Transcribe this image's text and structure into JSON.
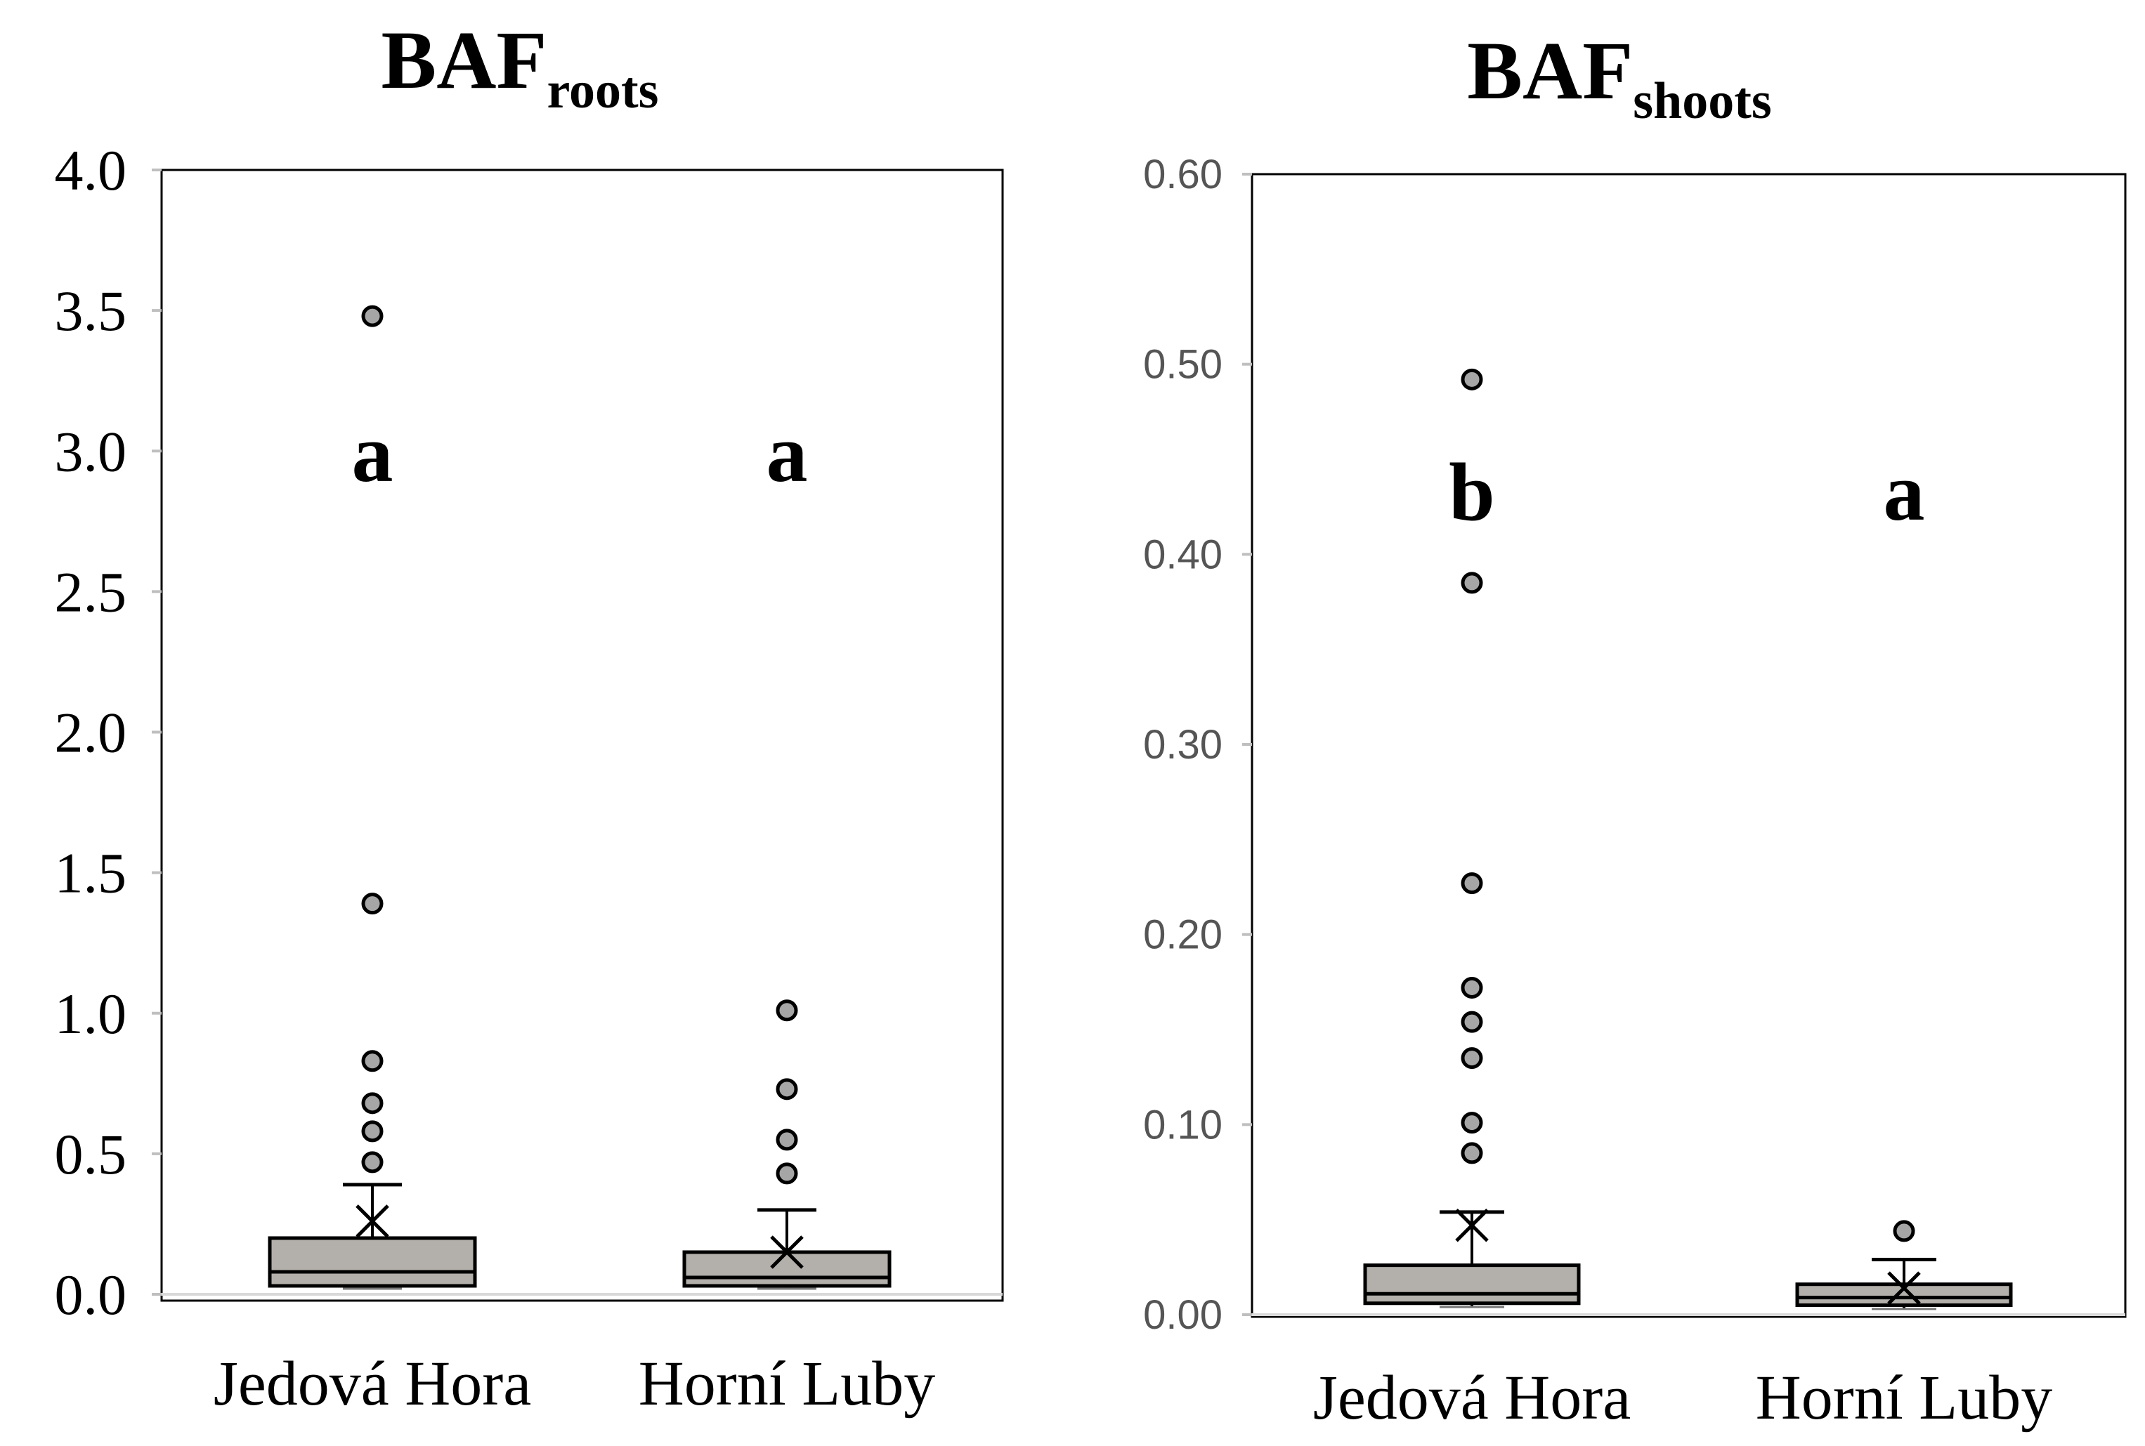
{
  "chart_data": [
    {
      "type": "box",
      "title": "BAF",
      "title_subscript": "roots",
      "categories": [
        "Jedová Hora",
        "Horní Luby"
      ],
      "ylim": [
        0,
        4.0
      ],
      "yticks": [
        0.0,
        0.5,
        1.0,
        1.5,
        2.0,
        2.5,
        3.0,
        3.5,
        4.0
      ],
      "ytick_labels": [
        "0.0",
        "0.5",
        "1.0",
        "1.5",
        "2.0",
        "2.5",
        "3.0",
        "3.5",
        "4.0"
      ],
      "boxes": [
        {
          "category": "Jedová Hora",
          "whisker_low": 0.02,
          "q1": 0.03,
          "median": 0.08,
          "q3": 0.2,
          "whisker_high": 0.39,
          "mean": 0.26,
          "outliers": [
            0.47,
            0.58,
            0.68,
            0.83,
            1.39,
            3.48
          ],
          "letter": "a"
        },
        {
          "category": "Horní Luby",
          "whisker_low": 0.02,
          "q1": 0.03,
          "median": 0.06,
          "q3": 0.15,
          "whisker_high": 0.3,
          "mean": 0.15,
          "outliers": [
            0.43,
            0.55,
            0.73,
            1.01
          ],
          "letter": "a"
        }
      ],
      "color": "#b3afaa"
    },
    {
      "type": "box",
      "title": "BAF",
      "title_subscript": "shoots",
      "categories": [
        "Jedová Hora",
        "Horní Luby"
      ],
      "ylim": [
        0,
        0.6
      ],
      "yticks": [
        0.0,
        0.1,
        0.2,
        0.3,
        0.4,
        0.5,
        0.6
      ],
      "ytick_labels": [
        "0.00",
        "0.10",
        "0.20",
        "0.30",
        "0.40",
        "0.50",
        "0.60"
      ],
      "boxes": [
        {
          "category": "Jedová Hora",
          "whisker_low": 0.004,
          "q1": 0.006,
          "median": 0.011,
          "q3": 0.026,
          "whisker_high": 0.054,
          "mean": 0.047,
          "outliers": [
            0.085,
            0.101,
            0.135,
            0.154,
            0.172,
            0.227,
            0.385,
            0.492
          ],
          "letter": "b"
        },
        {
          "category": "Horní Luby",
          "whisker_low": 0.003,
          "q1": 0.005,
          "median": 0.009,
          "q3": 0.016,
          "whisker_high": 0.029,
          "mean": 0.014,
          "outliers": [
            0.044
          ],
          "letter": "a"
        }
      ],
      "color": "#b3afaa"
    }
  ]
}
